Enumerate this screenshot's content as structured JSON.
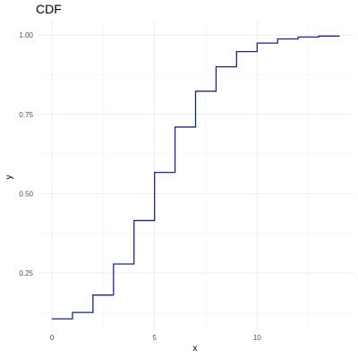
{
  "chart_data": {
    "type": "line",
    "step": true,
    "title": "CDF",
    "xlabel": "x",
    "ylabel": "y",
    "xlim": [
      -0.7,
      14.7
    ],
    "ylim": [
      0.069,
      1.043
    ],
    "x_ticks": [
      0,
      5,
      10
    ],
    "x_tick_labels": [
      "0",
      "5",
      "10"
    ],
    "y_ticks": [
      0.25,
      0.5,
      0.75,
      1.0
    ],
    "y_tick_labels": [
      "0.25",
      "0.50",
      "0.75",
      "1.00"
    ],
    "grid": true,
    "series": [
      {
        "color": "#1a2a6c",
        "x": [
          0,
          1,
          2,
          3,
          4,
          5,
          6,
          7,
          8,
          9,
          10,
          11,
          12,
          13,
          14
        ],
        "y": [
          0.105,
          0.125,
          0.18,
          0.278,
          0.415,
          0.567,
          0.71,
          0.823,
          0.9,
          0.948,
          0.975,
          0.988,
          0.994,
          0.997,
          0.998
        ]
      }
    ]
  }
}
